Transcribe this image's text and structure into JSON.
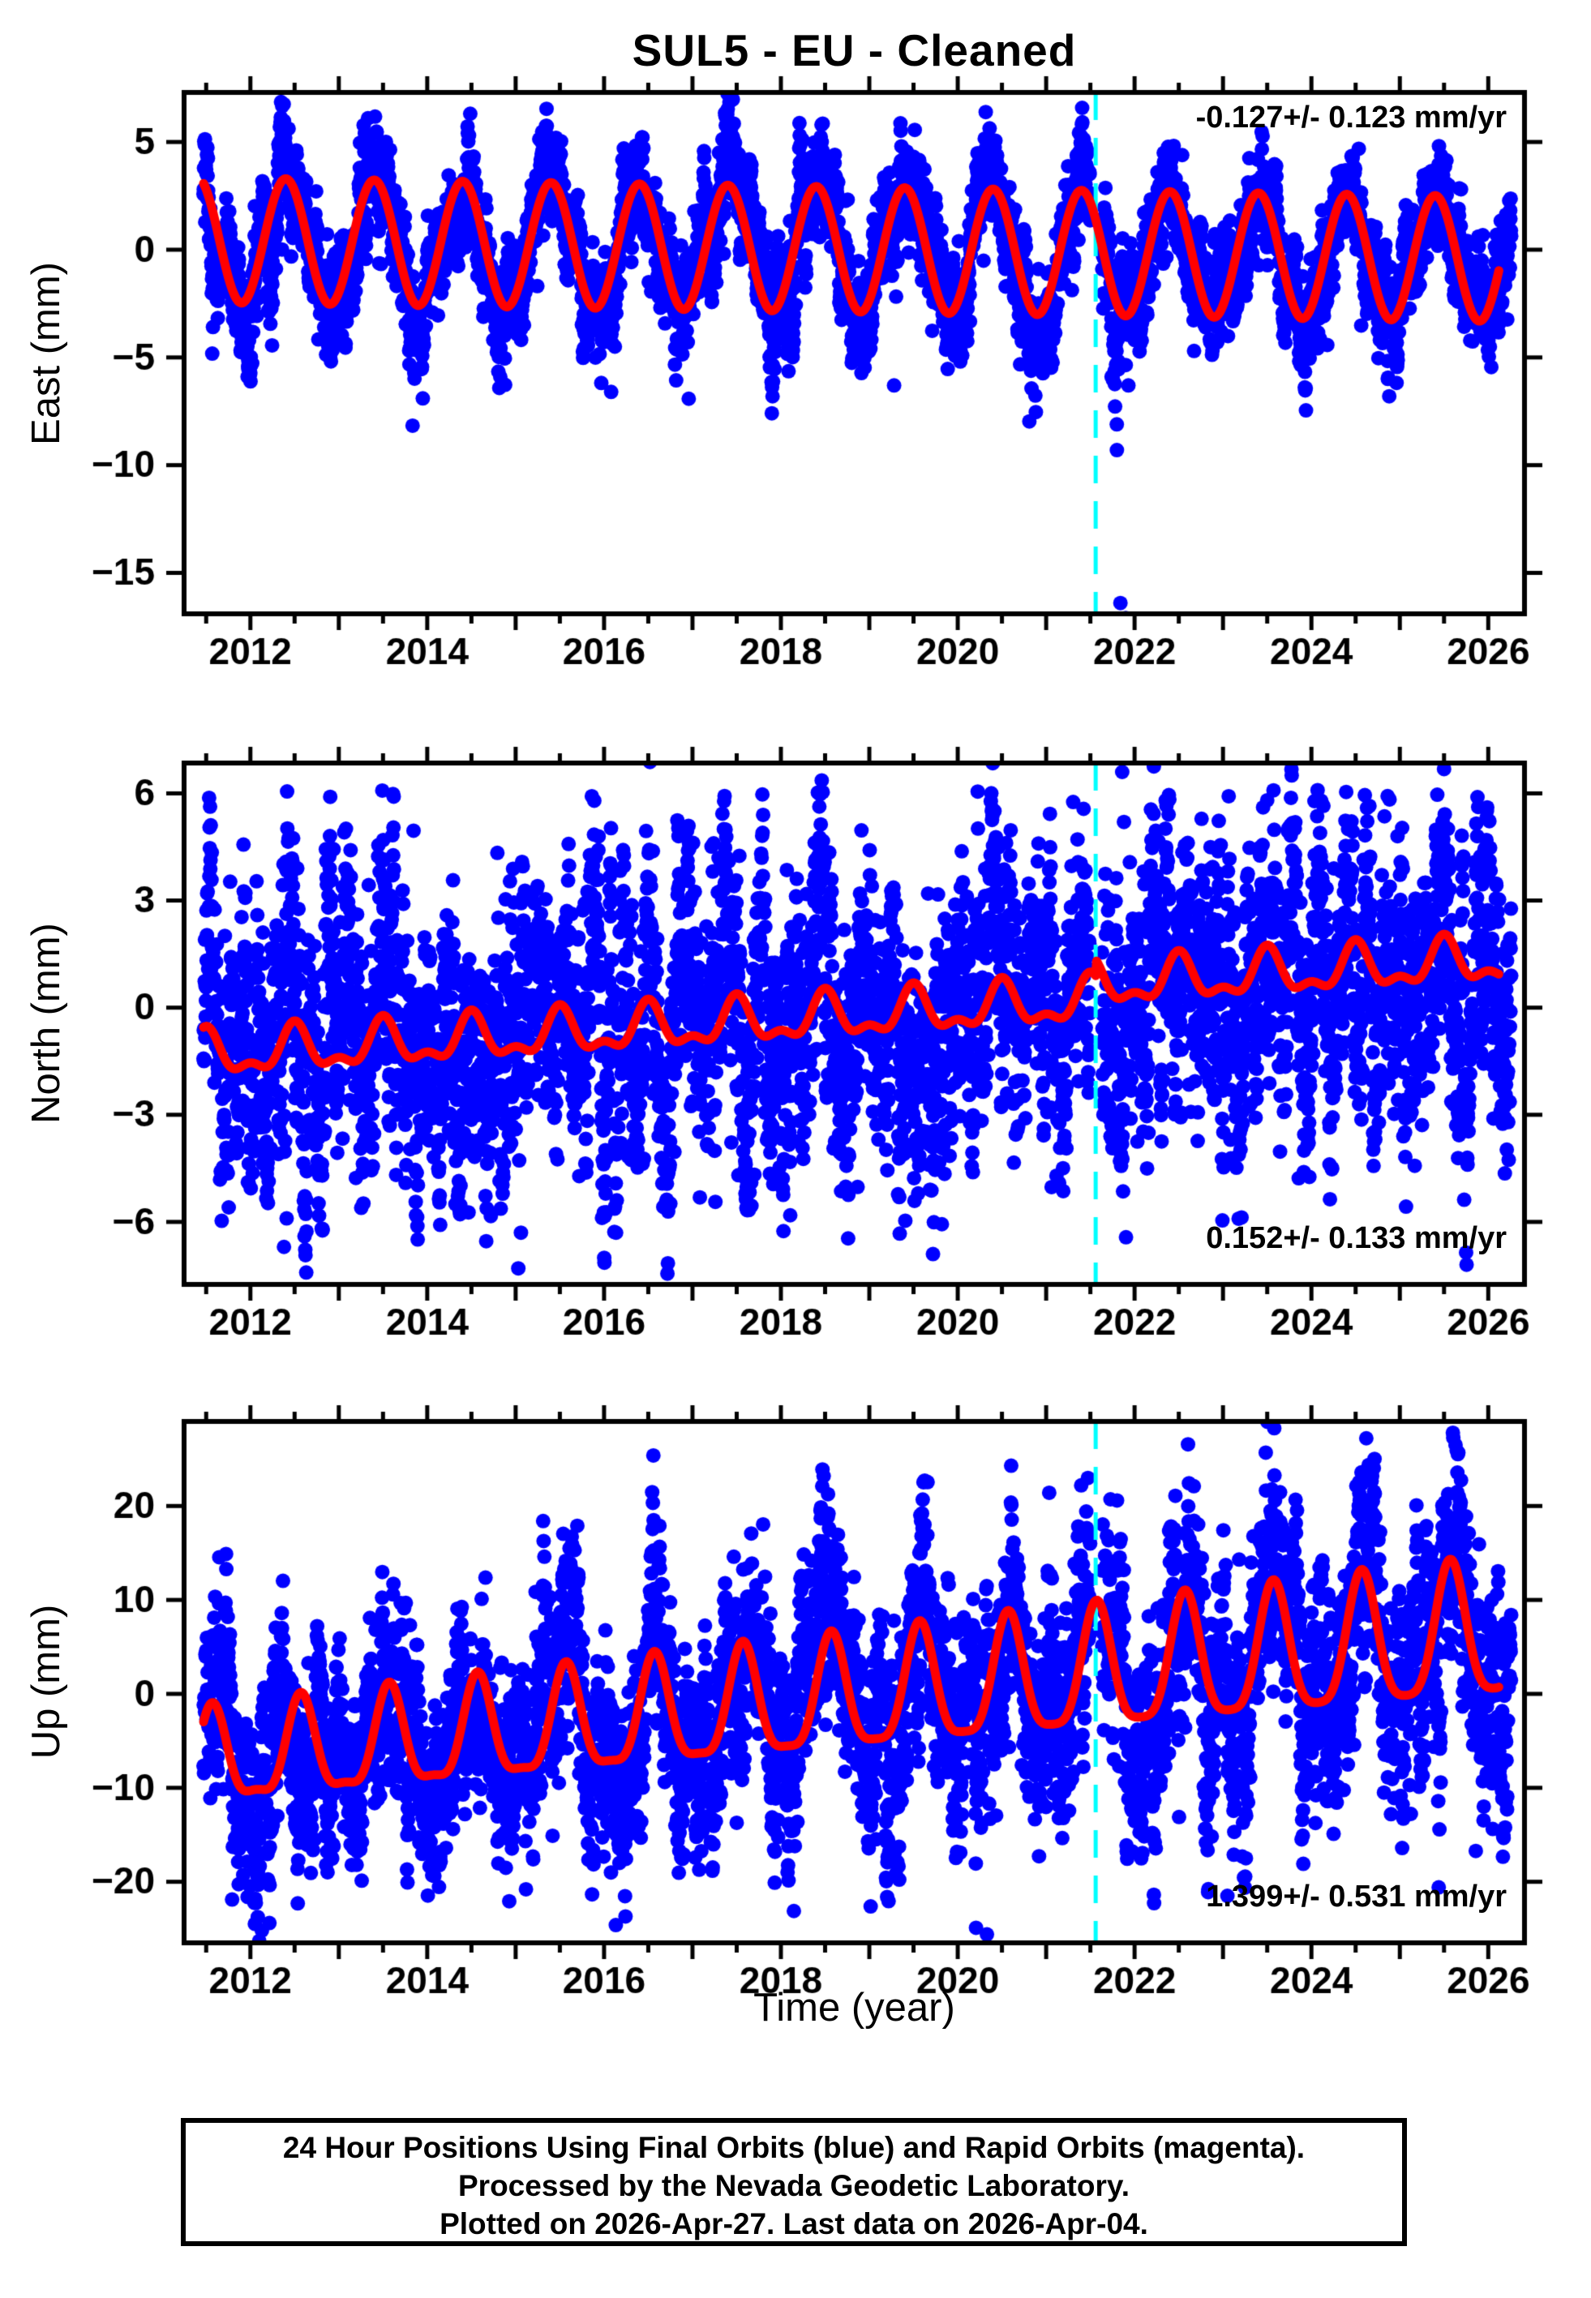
{
  "header": {
    "title": "SUL5  - EU - Cleaned"
  },
  "footer": {
    "lines": [
      "24 Hour Positions Using Final Orbits (blue) and Rapid Orbits (magenta).",
      "Processed by the Nevada Geodetic Laboratory.",
      "Plotted on 2026-Apr-27. Last data on 2026-Apr-04."
    ]
  },
  "chart_data": {
    "type": "scatter",
    "station": "SUL5",
    "reference_frame": "EU",
    "title": "SUL5  - EU - Cleaned",
    "xlabel": "Time (year)",
    "x_range": [
      2011.25,
      2026.41
    ],
    "x_labeled_ticks": [
      {
        "year": 2012,
        "label": "2012"
      },
      {
        "year": 2014,
        "label": "2014"
      },
      {
        "year": 2016,
        "label": "2016"
      },
      {
        "year": 2018,
        "label": "2018"
      },
      {
        "year": 2020,
        "label": "2020"
      },
      {
        "year": 2022,
        "label": "2022"
      },
      {
        "year": 2024,
        "label": "2024"
      },
      {
        "year": 2026,
        "label": "2026"
      }
    ],
    "x_annual_tick_step": 1,
    "x_minor_tick_step": 0.5,
    "data_start": 2011.47,
    "data_end": 2026.26,
    "model_end": 2026.12,
    "points_per_year": 365,
    "data_gaps": [
      [
        2021.5,
        2021.63
      ]
    ],
    "event_line_year": 2021.56,
    "colors": {
      "final_orbits": "#0000ff",
      "rapid_orbits": "#ff00ff",
      "model_fit": "#ff0000",
      "event_line": "#00ffff",
      "axis": "#000000",
      "background": "#ffffff"
    },
    "panels": [
      {
        "id": "east",
        "ylabel": "East (mm)",
        "rate_label": "-0.127+/- 0.123 mm/yr",
        "rate_mm_per_yr": -0.127,
        "rate_sigma": 0.123,
        "annotation_corner": "top-right",
        "y_range": [
          -16.9,
          7.3
        ],
        "y_ticks": [
          {
            "v": 5,
            "label": "5"
          },
          {
            "v": 0,
            "label": "0"
          },
          {
            "v": -5,
            "label": "−5"
          },
          {
            "v": -10,
            "label": "−10"
          },
          {
            "v": -15,
            "label": "−15"
          }
        ],
        "model": {
          "intercept": 0.45,
          "slope": -0.06,
          "t0": 2011.5,
          "annual_amp": 2.9,
          "annual_amp_growth": 0,
          "annual_peak_frac": 0.4,
          "semi_amp": 0,
          "step_year": 0,
          "step_mm": 0
        },
        "noise": {
          "seed": 101,
          "sd": 0.85,
          "sd_growth": 0,
          "ar_phi": 0.92,
          "ar_sd": 0.5,
          "tail_p": 0.012,
          "tail_mag": 2.4,
          "tail_sign": -1
        },
        "outliers": [
          [
            2013.95,
            -6.9
          ],
          [
            2016.08,
            -6.6
          ],
          [
            2019.28,
            -6.3
          ],
          [
            2021.74,
            -5.9
          ],
          [
            2021.8,
            -9.3
          ],
          [
            2021.84,
            -16.4
          ],
          [
            2021.9,
            -17.1
          ],
          [
            2021.93,
            -6.3
          ],
          [
            2024.88,
            -6.8
          ]
        ]
      },
      {
        "id": "north",
        "ylabel": "North (mm)",
        "rate_label": "0.152+/- 0.133 mm/yr",
        "rate_mm_per_yr": 0.152,
        "rate_sigma": 0.133,
        "annotation_corner": "bottom-right",
        "y_range": [
          -7.75,
          6.85
        ],
        "y_ticks": [
          {
            "v": 6,
            "label": "6"
          },
          {
            "v": 3,
            "label": "3"
          },
          {
            "v": 0,
            "label": "0"
          },
          {
            "v": -3,
            "label": "−3"
          },
          {
            "v": -6,
            "label": "−6"
          }
        ],
        "model": {
          "intercept": -1.35,
          "slope": 0.152,
          "t0": 2011.5,
          "annual_amp": 0.55,
          "annual_amp_growth": 0,
          "annual_peak_frac": 0.5,
          "semi_amp": 0.28,
          "step_year": 2021.56,
          "step_mm": 0.45
        },
        "noise": {
          "seed": 202,
          "sd": 1.35,
          "sd_growth": 0,
          "ar_phi": 0.93,
          "ar_sd": 0.75,
          "tail_p": 0.01,
          "tail_mag": 2.2,
          "tail_sign": -1
        },
        "outliers": [
          [
            2012.38,
            -6.7
          ],
          [
            2012.41,
            -5.9
          ],
          [
            2015.03,
            -7.3
          ],
          [
            2015.06,
            -6.3
          ],
          [
            2019.72,
            -6.9
          ],
          [
            2021.86,
            6.6
          ],
          [
            2021.88,
            5.2
          ]
        ]
      },
      {
        "id": "up",
        "ylabel": "Up (mm)",
        "rate_label": "1.399+/- 0.531 mm/yr",
        "rate_mm_per_yr": 1.399,
        "rate_sigma": 0.531,
        "annotation_corner": "bottom-right",
        "y_range": [
          -26.5,
          29.0
        ],
        "y_ticks": [
          {
            "v": 20,
            "label": "20"
          },
          {
            "v": 10,
            "label": "10"
          },
          {
            "v": 0,
            "label": "0"
          },
          {
            "v": -10,
            "label": "−10"
          },
          {
            "v": -20,
            "label": "−20"
          }
        ],
        "model": {
          "intercept": -7.3,
          "slope": 0.93,
          "t0": 2011.5,
          "annual_amp": 4.8,
          "annual_amp_growth": 0.16,
          "annual_peak_frac": 0.57,
          "semi_amp": 1.5,
          "step_year": 0,
          "step_mm": 0
        },
        "noise": {
          "seed": 303,
          "sd": 3.4,
          "sd_growth": 0.03,
          "ar_phi": 0.93,
          "ar_sd": 2.0,
          "tail_p": 0.012,
          "tail_mag": 6.0,
          "tail_sign": 0
        },
        "outliers": [
          [
            2012.1,
            -26.3
          ],
          [
            2012.13,
            -25.2
          ],
          [
            2020.33,
            -25.6
          ],
          [
            2023.05,
            -21.5
          ],
          [
            2025.6,
            27.8
          ],
          [
            2025.63,
            26.5
          ]
        ]
      }
    ]
  }
}
